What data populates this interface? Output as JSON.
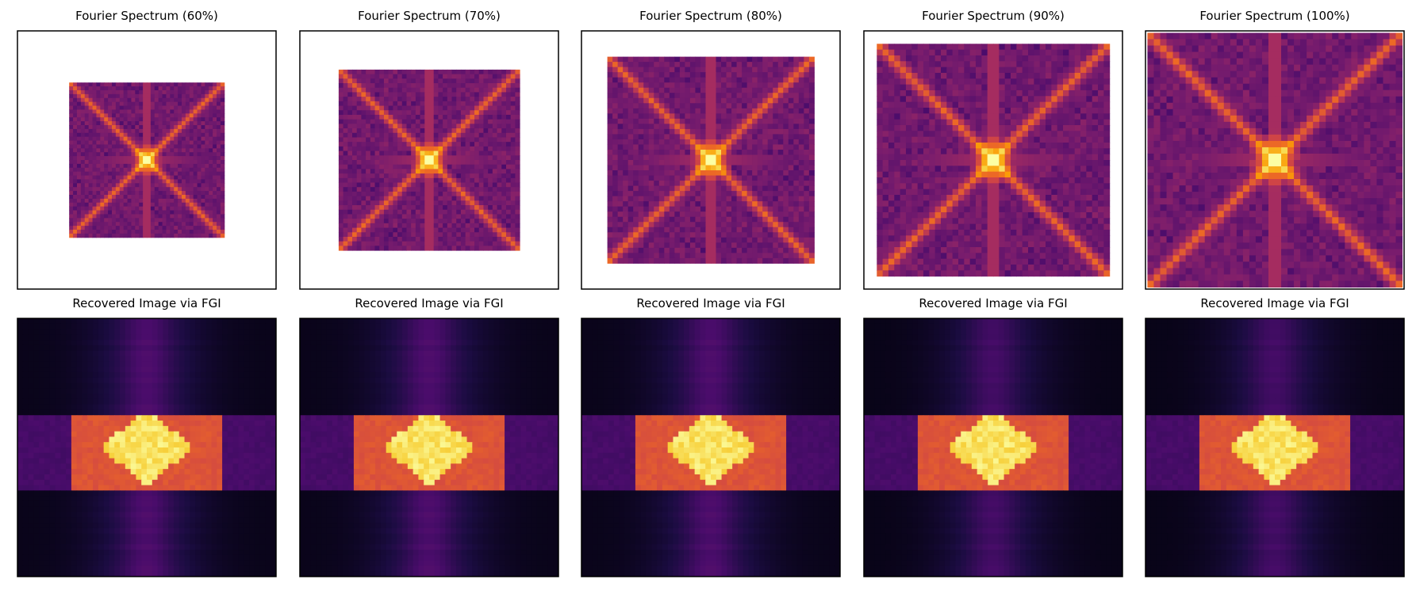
{
  "chart_data": [
    {
      "type": "heatmap",
      "title": "Fourier Spectrum (60%)",
      "content": "fourier-spectrum",
      "sampling_ratio": 0.6,
      "colormap": "inferno",
      "axes_visible": false
    },
    {
      "type": "heatmap",
      "title": "Fourier Spectrum (70%)",
      "content": "fourier-spectrum",
      "sampling_ratio": 0.7,
      "colormap": "inferno",
      "axes_visible": false
    },
    {
      "type": "heatmap",
      "title": "Fourier Spectrum (80%)",
      "content": "fourier-spectrum",
      "sampling_ratio": 0.8,
      "colormap": "inferno",
      "axes_visible": false
    },
    {
      "type": "heatmap",
      "title": "Fourier Spectrum (90%)",
      "content": "fourier-spectrum",
      "sampling_ratio": 0.9,
      "colormap": "inferno",
      "axes_visible": false
    },
    {
      "type": "heatmap",
      "title": "Fourier Spectrum (100%)",
      "content": "fourier-spectrum",
      "sampling_ratio": 1.0,
      "colormap": "inferno",
      "axes_visible": false
    },
    {
      "type": "heatmap",
      "title": "Recovered Image via FGI",
      "content": "recovered-image",
      "sampling_ratio": 0.6,
      "colormap": "inferno",
      "axes_visible": false
    },
    {
      "type": "heatmap",
      "title": "Recovered Image via FGI",
      "content": "recovered-image",
      "sampling_ratio": 0.7,
      "colormap": "inferno",
      "axes_visible": false
    },
    {
      "type": "heatmap",
      "title": "Recovered Image via FGI",
      "content": "recovered-image",
      "sampling_ratio": 0.8,
      "colormap": "inferno",
      "axes_visible": false
    },
    {
      "type": "heatmap",
      "title": "Recovered Image via FGI",
      "content": "recovered-image",
      "sampling_ratio": 0.9,
      "colormap": "inferno",
      "axes_visible": false
    },
    {
      "type": "heatmap",
      "title": "Recovered Image via FGI",
      "content": "recovered-image",
      "sampling_ratio": 1.0,
      "colormap": "inferno",
      "axes_visible": false
    }
  ],
  "colors": {
    "inferno": [
      "#000004",
      "#1b0c41",
      "#4a0c6b",
      "#781c6d",
      "#a52c60",
      "#cf4446",
      "#ed6925",
      "#fb9b06",
      "#f7d13d",
      "#fcffa4"
    ],
    "frame": "#000000",
    "background": "#ffffff"
  }
}
